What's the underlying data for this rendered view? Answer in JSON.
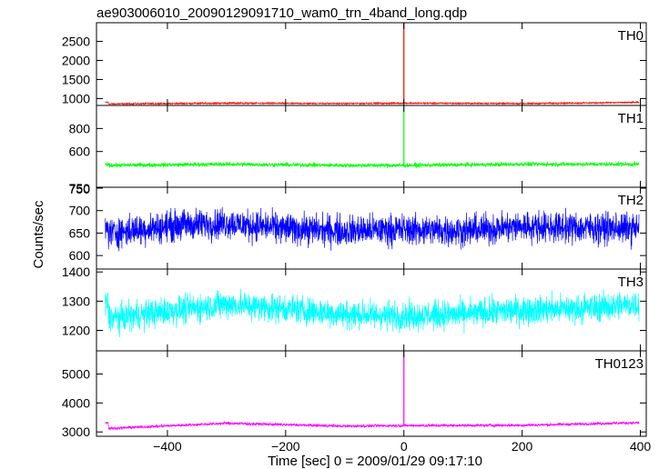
{
  "chart_data": {
    "type": "line",
    "title": "ae903006010_20090129091710_wam0_trn_4band_long.qdp",
    "xlabel": "Time [sec] 0 = 2009/01/29 09:17:10",
    "ylabel": "Counts/sec",
    "xlim": [
      -520,
      410
    ],
    "xticks": [
      -400,
      -200,
      0,
      200,
      400
    ],
    "trigger_time": 0,
    "panels": [
      {
        "name": "TH0",
        "color": "#ff0000",
        "ylim": [
          820,
          2990
        ],
        "yticks": [
          1000,
          1500,
          2000,
          2500
        ],
        "tick_labels": [
          "1000",
          "1500",
          "2000",
          "2500"
        ],
        "baseline": [
          [
            -500,
            860
          ],
          [
            -300,
            880
          ],
          [
            -100,
            870
          ],
          [
            0,
            880
          ],
          [
            200,
            870
          ],
          [
            400,
            900
          ]
        ],
        "noise": 15,
        "spike": 2990
      },
      {
        "name": "TH1",
        "color": "#00ff00",
        "ylim": [
          290,
          1000
        ],
        "yticks": [
          600,
          800
        ],
        "tick_labels": [
          "600",
          "800"
        ],
        "baseline": [
          [
            -500,
            480
          ],
          [
            -300,
            490
          ],
          [
            -100,
            480
          ],
          [
            0,
            480
          ],
          [
            200,
            490
          ],
          [
            400,
            490
          ]
        ],
        "noise": 15,
        "spike": 1000
      },
      {
        "name": "TH2",
        "color": "#0000ff",
        "ylim": [
          570,
          752
        ],
        "yticks": [
          600,
          650,
          700,
          750
        ],
        "tick_labels": [
          "600",
          "650",
          "700",
          "750"
        ],
        "extra_label": "750",
        "baseline": [
          [
            -500,
            650
          ],
          [
            -380,
            668
          ],
          [
            -300,
            672
          ],
          [
            -200,
            660
          ],
          [
            -100,
            655
          ],
          [
            0,
            658
          ],
          [
            100,
            655
          ],
          [
            200,
            665
          ],
          [
            300,
            662
          ],
          [
            400,
            660
          ]
        ],
        "noise": 28
      },
      {
        "name": "TH3",
        "color": "#00ffff",
        "ylim": [
          1130,
          1410
        ],
        "yticks": [
          1200,
          1300,
          1400
        ],
        "tick_labels": [
          "1200",
          "1300",
          "1400"
        ],
        "baseline": [
          [
            -500,
            1240
          ],
          [
            -380,
            1270
          ],
          [
            -300,
            1290
          ],
          [
            -200,
            1275
          ],
          [
            -100,
            1255
          ],
          [
            0,
            1250
          ],
          [
            100,
            1255
          ],
          [
            200,
            1270
          ],
          [
            300,
            1275
          ],
          [
            400,
            1290
          ]
        ],
        "noise": 40
      },
      {
        "name": "TH0123",
        "color": "#ff00ff",
        "ylim": [
          2850,
          5800
        ],
        "yticks": [
          3000,
          4000,
          5000
        ],
        "tick_labels": [
          "3000",
          "4000",
          "5000"
        ],
        "baseline": [
          [
            -500,
            3120
          ],
          [
            -300,
            3300
          ],
          [
            -100,
            3200
          ],
          [
            0,
            3220
          ],
          [
            200,
            3230
          ],
          [
            400,
            3320
          ]
        ],
        "noise": 40,
        "spike": 5800
      }
    ]
  }
}
